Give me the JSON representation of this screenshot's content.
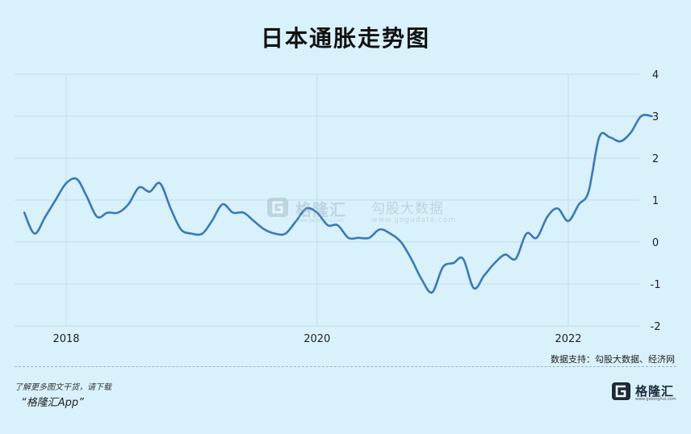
{
  "chart_data": {
    "type": "line",
    "title": "日本通胀走势图",
    "xlabel": "",
    "ylabel": "",
    "ylim": [
      -2,
      4
    ],
    "y_ticks": [
      "4",
      "3",
      "2",
      "1",
      "0",
      "-1",
      "-2"
    ],
    "x_ticks": [
      "2018",
      "2020",
      "2022"
    ],
    "grid": true,
    "line_color": "#3a7ab5",
    "series": [
      {
        "name": "",
        "x": [
          "2017-09",
          "2017-10",
          "2017-11",
          "2017-12",
          "2018-01",
          "2018-02",
          "2018-03",
          "2018-04",
          "2018-05",
          "2018-06",
          "2018-07",
          "2018-08",
          "2018-09",
          "2018-10",
          "2018-11",
          "2018-12",
          "2019-01",
          "2019-02",
          "2019-03",
          "2019-04",
          "2019-05",
          "2019-06",
          "2019-07",
          "2019-08",
          "2019-09",
          "2019-10",
          "2019-11",
          "2019-12",
          "2020-01",
          "2020-02",
          "2020-03",
          "2020-04",
          "2020-05",
          "2020-06",
          "2020-07",
          "2020-08",
          "2020-09",
          "2020-10",
          "2020-11",
          "2020-12",
          "2021-01",
          "2021-02",
          "2021-03",
          "2021-04",
          "2021-05",
          "2021-06",
          "2021-07",
          "2021-08",
          "2021-09",
          "2021-10",
          "2021-11",
          "2021-12",
          "2022-01",
          "2022-02",
          "2022-03",
          "2022-04",
          "2022-05",
          "2022-06",
          "2022-07",
          "2022-08",
          "2022-09"
        ],
        "values": [
          0.7,
          0.2,
          0.6,
          1.0,
          1.4,
          1.5,
          1.1,
          0.6,
          0.7,
          0.7,
          0.9,
          1.3,
          1.2,
          1.4,
          0.8,
          0.3,
          0.2,
          0.2,
          0.5,
          0.9,
          0.7,
          0.7,
          0.5,
          0.3,
          0.2,
          0.2,
          0.5,
          0.8,
          0.7,
          0.4,
          0.4,
          0.1,
          0.1,
          0.1,
          0.3,
          0.2,
          0.0,
          -0.4,
          -0.9,
          -1.2,
          -0.6,
          -0.5,
          -0.4,
          -1.1,
          -0.8,
          -0.5,
          -0.3,
          -0.4,
          0.2,
          0.1,
          0.6,
          0.8,
          0.5,
          0.9,
          1.2,
          2.5,
          2.5,
          2.4,
          2.6,
          3.0,
          3.0
        ]
      }
    ]
  },
  "watermark": {
    "brand": "格隆汇",
    "brand_url": "www.gelonghui.com",
    "data_brand": "勾股大数据",
    "data_url": "www.gogudata.com"
  },
  "footer": {
    "source": "数据支持：勾股大数据、经济网",
    "promo_line1": "了解更多图文干货，请下载",
    "promo_line2": "“格隆汇App”",
    "logo_text": "格隆汇",
    "logo_url": "www.gelonghui.com"
  }
}
